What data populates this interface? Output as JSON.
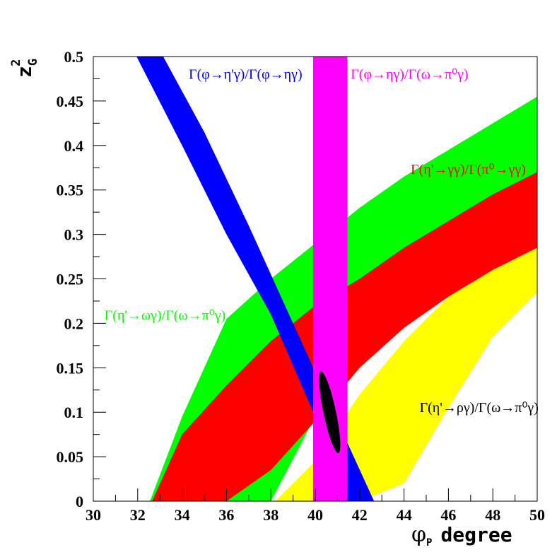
{
  "chart_data": {
    "type": "area",
    "title": "",
    "xlabel": {
      "symbol": "φ",
      "subscript": "P",
      "text": "degree"
    },
    "ylabel": {
      "base": "z",
      "sub": "G",
      "sup": "2"
    },
    "xlim": [
      30,
      50
    ],
    "ylim": [
      0,
      0.5
    ],
    "xticks": [
      30,
      32,
      34,
      36,
      38,
      40,
      42,
      44,
      46,
      48,
      50
    ],
    "yticks": [
      0,
      0.05,
      0.1,
      0.15,
      0.2,
      0.25,
      0.3,
      0.35,
      0.4,
      0.45,
      0.5
    ],
    "grid": false,
    "series": [
      {
        "id": "green",
        "color": "#00ff00",
        "x": [
          32.55,
          34,
          36,
          38,
          40,
          42,
          44,
          46,
          48,
          50
        ],
        "lower": [
          0,
          0,
          0,
          0,
          0.095,
          0.15,
          0.195,
          0.24,
          0.275,
          0.3
        ],
        "upper": [
          0,
          0.095,
          0.205,
          0.25,
          0.29,
          0.33,
          0.365,
          0.395,
          0.425,
          0.455
        ]
      },
      {
        "id": "yellow",
        "color": "#ffff00",
        "x": [
          38.2,
          40,
          42,
          44,
          46,
          48,
          50
        ],
        "lower": [
          0,
          0,
          0,
          0.02,
          0.105,
          0.185,
          0.235
        ],
        "upper": [
          0,
          0.045,
          0.12,
          0.18,
          0.23,
          0.265,
          0.3
        ]
      },
      {
        "id": "red",
        "color": "#ff0000",
        "x": [
          32.65,
          34,
          36,
          38,
          40,
          42,
          44,
          46,
          48,
          50
        ],
        "lower": [
          0,
          0,
          0,
          0.035,
          0.09,
          0.15,
          0.195,
          0.23,
          0.26,
          0.285
        ],
        "upper": [
          0,
          0.075,
          0.13,
          0.18,
          0.22,
          0.25,
          0.285,
          0.315,
          0.345,
          0.37
        ]
      },
      {
        "id": "blue",
        "color": "#0000ff",
        "kind": "diagonal-band",
        "edge1": {
          "x": [
            31.95,
            34,
            36,
            38,
            40,
            41.35
          ],
          "y": [
            0.5,
            0.4,
            0.3,
            0.21,
            0.095,
            0
          ]
        },
        "edge2": {
          "x": [
            33.15,
            35,
            37,
            39,
            41,
            42.65
          ],
          "y": [
            0.5,
            0.415,
            0.31,
            0.2,
            0.09,
            0
          ]
        }
      },
      {
        "id": "magenta",
        "color": "#ff00ff",
        "kind": "vertical-band",
        "xmin": 39.9,
        "xmax": 41.45
      }
    ],
    "ellipse": {
      "color": "#000000",
      "cx": 40.65,
      "cy": 0.1,
      "rx": 0.28,
      "ry": 0.047,
      "rotation_deg": -12
    },
    "annotations": [
      {
        "id": "blue-label",
        "text": "Γ(φ→η'γ)/Γ(φ→ηγ)",
        "color": "#0000ff",
        "x": 34.3,
        "y": 0.475
      },
      {
        "id": "magenta-label",
        "text": "Γ(φ→ηγ)/Γ(ω→π⁰γ)",
        "color": "#ff00ff",
        "x": 41.6,
        "y": 0.475
      },
      {
        "id": "red-label",
        "text": "Γ(η'→γγ)/Γ(π⁰→γγ)",
        "color": "#ff0000",
        "x": 44.3,
        "y": 0.368
      },
      {
        "id": "green-label",
        "text": "Γ(η'→ωγ)/Γ(ω→π⁰γ)",
        "color": "#00ff00",
        "x": 30.5,
        "y": 0.204
      },
      {
        "id": "black-label",
        "text": "Γ(η'→ργ)/Γ(ω→π⁰γ)",
        "color": "#000000",
        "x": 44.7,
        "y": 0.1
      }
    ]
  }
}
